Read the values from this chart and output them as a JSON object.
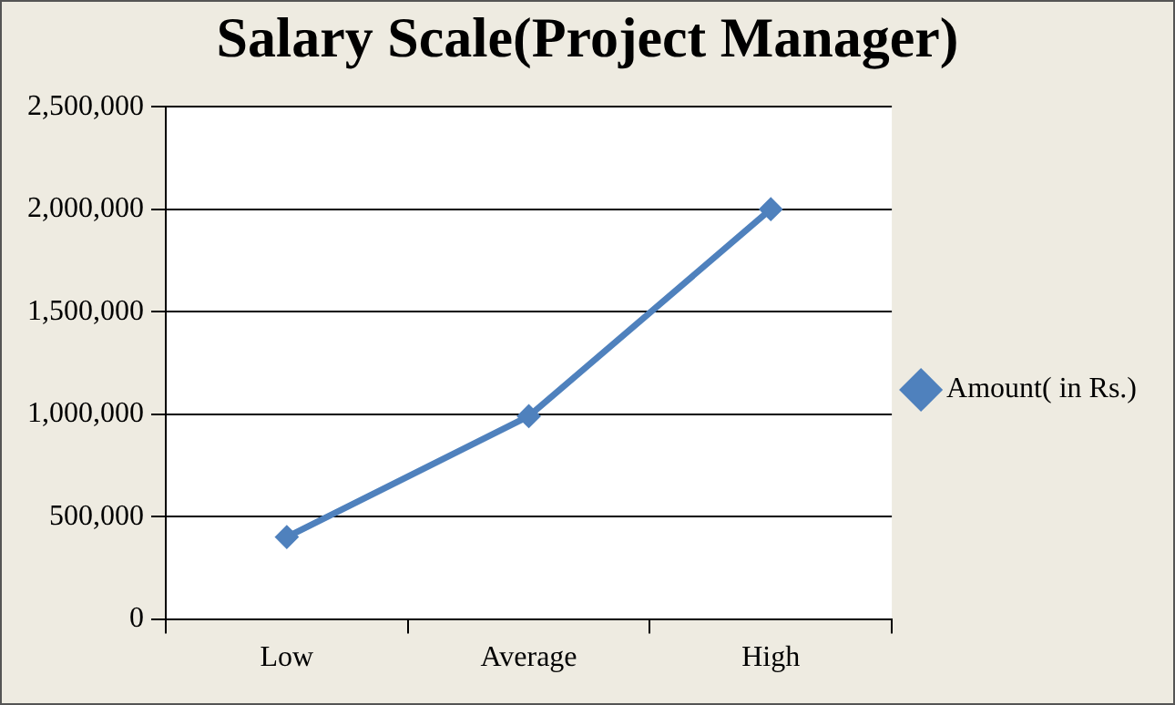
{
  "chart_data": {
    "type": "line",
    "title": "Salary Scale(Project Manager)",
    "categories": [
      "Low",
      "Average",
      "High"
    ],
    "series": [
      {
        "name": "Amount( in Rs.)",
        "color": "#4f81bd",
        "values": [
          400000,
          990000,
          2000000
        ]
      }
    ],
    "ylim": [
      0,
      2500000
    ],
    "yticks": [
      0,
      {
        "value": 500000,
        "label": "500,000"
      },
      {
        "value": 1000000,
        "label": "1,000,000"
      },
      {
        "value": 1500000,
        "label": "1,500,000"
      },
      {
        "value": 2000000,
        "label": "2,000,000"
      },
      {
        "value": 2500000,
        "label": "2,500,000"
      }
    ],
    "grid": "y",
    "legend": "right",
    "marker": "diamond",
    "line_style": "solid"
  }
}
